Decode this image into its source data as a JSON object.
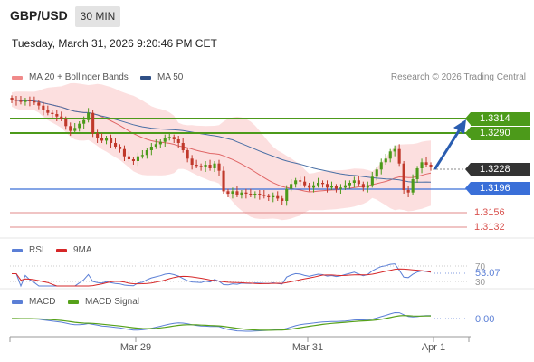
{
  "header": {
    "symbol": "GBP/USD",
    "timeframe": "30 MIN",
    "datetime": "Tuesday, March 31, 2026 9:20:46 PM CET"
  },
  "legend": {
    "ma20": "MA 20 + Bollinger Bands",
    "ma50": "MA 50",
    "credit": "Research © 2026 Trading Central"
  },
  "colors": {
    "ma20": "#e06666",
    "band_fill": "#fbd4d4",
    "ma50": "#4a6fa5",
    "target_green": "#4c9a1a",
    "pivot_blue": "#3a6fd8",
    "support_red": "#d9534f",
    "bull": "#4c9a1a",
    "bear": "#c0392b",
    "rsi": "#5b7fd6",
    "rsi_ma": "#d62728",
    "macd": "#5b7fd6",
    "macd_signal": "#56a11a",
    "last_price_bg": "#333333"
  },
  "levels": {
    "resistance": [
      "1.3314",
      "1.3290"
    ],
    "last_price": "1.3228",
    "pivot": "1.3196",
    "support": [
      "1.3156",
      "1.3132"
    ]
  },
  "rsi_panel": {
    "label": "RSI",
    "ma_label": "9MA",
    "level_high": "70",
    "level_low": "30",
    "value": "53.07"
  },
  "macd_panel": {
    "label": "MACD",
    "signal_label": "MACD Signal",
    "value": "0.00"
  },
  "x_axis": {
    "ticks": [
      "Mar 29",
      "Mar 31",
      "Apr 1"
    ]
  },
  "chart_data": {
    "type": "candlestick",
    "timeframe": "30 MIN",
    "y_range": [
      1.3115,
      1.3355
    ],
    "x_ticks": [
      "Mar 29",
      "Mar 31",
      "Apr 1"
    ],
    "closes": [
      1.334,
      1.3338,
      1.3336,
      1.3339,
      1.3337,
      1.3335,
      1.333,
      1.3322,
      1.3318,
      1.3316,
      1.3312,
      1.3308,
      1.3296,
      1.3288,
      1.3293,
      1.33,
      1.3306,
      1.3318,
      1.3284,
      1.3276,
      1.3272,
      1.3276,
      1.3268,
      1.3262,
      1.3258,
      1.3246,
      1.3241,
      1.3238,
      1.3246,
      1.3248,
      1.3256,
      1.3262,
      1.3266,
      1.327,
      1.3276,
      1.3278,
      1.3274,
      1.3268,
      1.3256,
      1.3242,
      1.3232,
      1.323,
      1.3228,
      1.3232,
      1.3226,
      1.3234,
      1.3222,
      1.3188,
      1.3184,
      1.3188,
      1.3182,
      1.3186,
      1.3184,
      1.3182,
      1.3184,
      1.3182,
      1.318,
      1.3178,
      1.318,
      1.3176,
      1.3172,
      1.3192,
      1.32,
      1.3206,
      1.3204,
      1.3198,
      1.3194,
      1.3198,
      1.3202,
      1.32,
      1.3194,
      1.3196,
      1.3192,
      1.3194,
      1.3198,
      1.3202,
      1.3206,
      1.32,
      1.3194,
      1.3198,
      1.3212,
      1.3224,
      1.3236,
      1.3242,
      1.3254,
      1.3258,
      1.3234,
      1.319,
      1.3186,
      1.3208,
      1.3226,
      1.3236,
      1.3232,
      1.3228
    ],
    "bollinger_upper_end": 1.3262,
    "bollinger_lower_end": 1.3182,
    "ma50_end": 1.32,
    "resistance": [
      1.3314,
      1.329
    ],
    "last": 1.3228,
    "pivot": 1.3196,
    "support": [
      1.3156,
      1.3132
    ],
    "rsi_last": 53.07,
    "macd_last": 0.0
  }
}
